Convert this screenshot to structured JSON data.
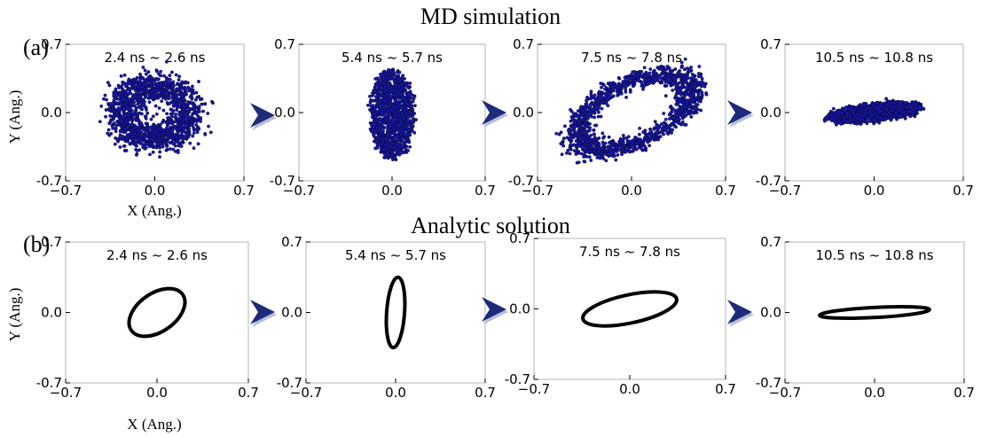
{
  "colors": {
    "points": "#1a1aa8",
    "point_edge": "#050540",
    "ellipse": "#000000",
    "arrow": "#1e2a7a",
    "arrow_shadow": "#9aa3c9"
  },
  "rows": [
    {
      "title": "MD simulation",
      "panel_label": "(a)",
      "xlabel": "X (Ang.)",
      "ylabel": "Y (Ang.)"
    },
    {
      "title": "Analytic solution",
      "panel_label": "(b)",
      "xlabel": "X (Ang.)",
      "ylabel": "Y (Ang.)"
    }
  ],
  "chart_data": [
    {
      "type": "scatter",
      "row": "MD simulation",
      "title": "2.4 ns ~ 2.6 ns",
      "xlim": [
        -0.7,
        0.7
      ],
      "ylim": [
        -0.7,
        0.7
      ],
      "xticks": [
        "−0.7",
        "0.0",
        "0.7"
      ],
      "yticks": [
        "0.7",
        "0.0",
        "-0.7"
      ],
      "shape": {
        "kind": "ring",
        "cx": 0.0,
        "cy": 0.0,
        "rx": 0.26,
        "ry": 0.28,
        "angle_deg": 0,
        "width": 0.17
      }
    },
    {
      "type": "scatter",
      "row": "MD simulation",
      "title": "5.4 ns ~ 5.7 ns",
      "xlim": [
        -0.7,
        0.7
      ],
      "ylim": [
        -0.7,
        0.7
      ],
      "xticks": [
        "−0.7",
        "0.0",
        "0.7"
      ],
      "yticks": [
        "0.7",
        "0.0",
        "-0.7"
      ],
      "shape": {
        "kind": "filled",
        "cx": 0.0,
        "cy": -0.02,
        "rx": 0.16,
        "ry": 0.46,
        "angle_deg": 0
      }
    },
    {
      "type": "scatter",
      "row": "MD simulation",
      "title": "7.5 ns ~ 7.8 ns",
      "xlim": [
        -0.7,
        0.7
      ],
      "ylim": [
        -0.7,
        0.7
      ],
      "xticks": [
        "−0.7",
        "0.0",
        "0.7"
      ],
      "yticks": [
        "0.7",
        "0.0",
        "-0.7"
      ],
      "shape": {
        "kind": "ring",
        "cx": 0.02,
        "cy": 0.0,
        "rx": 0.5,
        "ry": 0.28,
        "angle_deg": 40,
        "width": 0.15
      }
    },
    {
      "type": "scatter",
      "row": "MD simulation",
      "title": "10.5 ns ~ 10.8 ns",
      "xlim": [
        -0.7,
        0.7
      ],
      "ylim": [
        -0.7,
        0.7
      ],
      "xticks": [
        "−0.7",
        "0.0",
        "0.7"
      ],
      "yticks": [
        "0.7",
        "0.0",
        "-0.7"
      ],
      "shape": {
        "kind": "filled",
        "cx": 0.0,
        "cy": 0.0,
        "rx": 0.38,
        "ry": 0.09,
        "angle_deg": 8
      }
    },
    {
      "type": "line",
      "row": "Analytic solution",
      "title": "2.4 ns ~ 2.6 ns",
      "xlim": [
        -0.7,
        0.7
      ],
      "ylim": [
        -0.7,
        0.7
      ],
      "xticks": [
        "−0.7",
        "0.0",
        "0.7"
      ],
      "yticks": [
        "0.7",
        "0.0",
        "-0.7"
      ],
      "ellipse": {
        "cx": 0.0,
        "cy": 0.0,
        "rx": 0.24,
        "ry": 0.19,
        "angle_deg": 35
      }
    },
    {
      "type": "line",
      "row": "Analytic solution",
      "title": "5.4 ns ~ 5.7 ns",
      "xlim": [
        -0.7,
        0.7
      ],
      "ylim": [
        -0.7,
        0.7
      ],
      "xticks": [
        "−0.7",
        "0.0",
        "0.7"
      ],
      "yticks": [
        "0.7",
        "0.0",
        "-0.7"
      ],
      "ellipse": {
        "cx": 0.0,
        "cy": 0.0,
        "rx": 0.07,
        "ry": 0.35,
        "angle_deg": -4
      }
    },
    {
      "type": "line",
      "row": "Analytic solution",
      "title": "7.5 ns ~ 7.8 ns",
      "xlim": [
        -0.7,
        0.7
      ],
      "ylim": [
        -0.7,
        0.7
      ],
      "xticks": [
        "−0.7",
        "0.0",
        "0.7"
      ],
      "yticks": [
        "0.7",
        "0.0",
        "-0.7"
      ],
      "ellipse": {
        "cx": 0.0,
        "cy": 0.0,
        "rx": 0.35,
        "ry": 0.14,
        "angle_deg": 12
      }
    },
    {
      "type": "line",
      "row": "Analytic solution",
      "title": "10.5 ns ~ 10.8 ns",
      "xlim": [
        -0.7,
        0.7
      ],
      "ylim": [
        -0.7,
        0.7
      ],
      "xticks": [
        "−0.7",
        "0.0",
        "0.7"
      ],
      "yticks": [
        "0.7",
        "0.0",
        "-0.7"
      ],
      "ellipse": {
        "cx": 0.0,
        "cy": 0.0,
        "rx": 0.43,
        "ry": 0.05,
        "angle_deg": 3
      }
    }
  ]
}
